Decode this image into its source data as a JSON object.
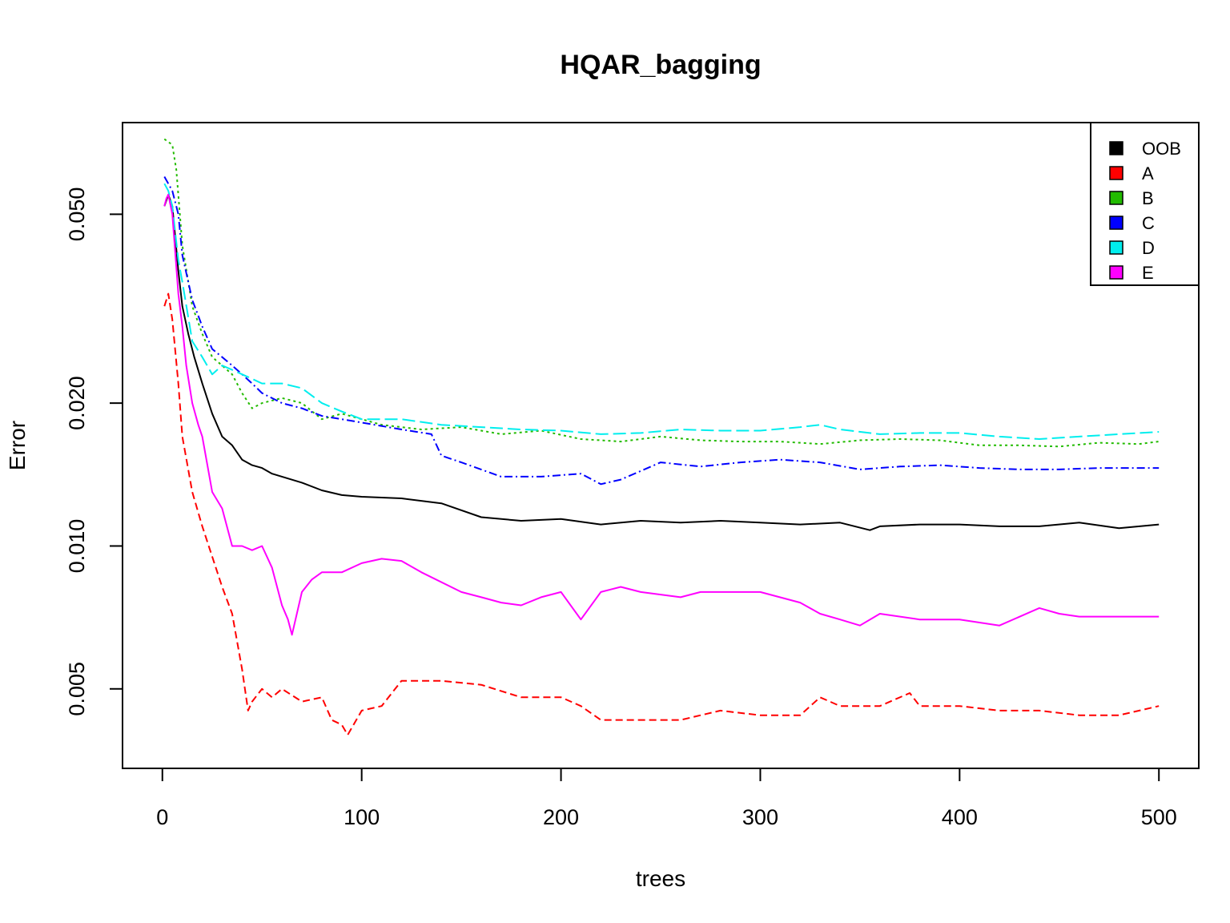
{
  "chart_data": {
    "type": "line",
    "title": "HQAR_bagging",
    "xlabel": "trees",
    "ylabel": "Error",
    "xlim": [
      -20,
      520
    ],
    "ylim": [
      0.0034,
      0.078
    ],
    "y_scale": "log",
    "x_ticks": [
      0,
      100,
      200,
      300,
      400,
      500
    ],
    "y_ticks": [
      0.005,
      0.01,
      0.02,
      0.05
    ],
    "y_tick_labels": [
      "0.005",
      "0.010",
      "0.020",
      "0.050"
    ],
    "grid": false,
    "legend_position": "top-right",
    "series": [
      {
        "name": "OOB",
        "color": "#000000",
        "dash": "solid",
        "x": [
          1,
          3,
          5,
          8,
          10,
          13,
          16,
          20,
          25,
          30,
          35,
          40,
          45,
          50,
          55,
          60,
          70,
          80,
          90,
          100,
          120,
          140,
          160,
          180,
          200,
          220,
          240,
          260,
          280,
          300,
          320,
          340,
          355,
          360,
          380,
          400,
          420,
          440,
          460,
          480,
          500
        ],
        "y": [
          0.052,
          0.055,
          0.052,
          0.038,
          0.032,
          0.028,
          0.025,
          0.022,
          0.019,
          0.017,
          0.0163,
          0.0152,
          0.0148,
          0.0146,
          0.0142,
          0.014,
          0.0136,
          0.0131,
          0.0128,
          0.0127,
          0.0126,
          0.0123,
          0.0115,
          0.0113,
          0.0114,
          0.0111,
          0.0113,
          0.0112,
          0.0113,
          0.0112,
          0.0111,
          0.0112,
          0.0108,
          0.011,
          0.0111,
          0.0111,
          0.011,
          0.011,
          0.0112,
          0.0109,
          0.0111
        ]
      },
      {
        "name": "A",
        "color": "#ff0000",
        "dash": "long",
        "x": [
          1,
          3,
          5,
          8,
          10,
          15,
          20,
          25,
          30,
          35,
          40,
          43,
          45,
          50,
          55,
          60,
          70,
          80,
          85,
          90,
          93,
          100,
          110,
          120,
          140,
          160,
          180,
          200,
          210,
          220,
          240,
          260,
          280,
          300,
          320,
          330,
          340,
          360,
          375,
          380,
          400,
          420,
          440,
          460,
          480,
          500
        ],
        "y": [
          0.032,
          0.034,
          0.03,
          0.022,
          0.017,
          0.013,
          0.011,
          0.0095,
          0.0082,
          0.0072,
          0.0055,
          0.0045,
          0.0047,
          0.005,
          0.0048,
          0.005,
          0.0047,
          0.0048,
          0.0043,
          0.0042,
          0.004,
          0.0045,
          0.0046,
          0.0052,
          0.0052,
          0.0051,
          0.0048,
          0.0048,
          0.0046,
          0.0043,
          0.0043,
          0.0043,
          0.0045,
          0.0044,
          0.0044,
          0.0048,
          0.0046,
          0.0046,
          0.0049,
          0.0046,
          0.0046,
          0.0045,
          0.0045,
          0.0044,
          0.0044,
          0.0046
        ]
      },
      {
        "name": "B",
        "color": "#22bb00",
        "dash": "dotted",
        "x": [
          1,
          3,
          5,
          7,
          10,
          15,
          20,
          25,
          30,
          35,
          40,
          45,
          50,
          60,
          70,
          80,
          90,
          100,
          110,
          130,
          150,
          170,
          190,
          210,
          230,
          250,
          270,
          290,
          310,
          330,
          350,
          370,
          390,
          410,
          430,
          450,
          470,
          490,
          500
        ],
        "y": [
          0.072,
          0.071,
          0.07,
          0.062,
          0.043,
          0.032,
          0.028,
          0.025,
          0.024,
          0.023,
          0.021,
          0.0195,
          0.02,
          0.0205,
          0.02,
          0.0185,
          0.019,
          0.0185,
          0.018,
          0.0176,
          0.0178,
          0.0172,
          0.0175,
          0.0168,
          0.0166,
          0.017,
          0.0167,
          0.0166,
          0.0166,
          0.0164,
          0.0167,
          0.0168,
          0.0167,
          0.0163,
          0.0163,
          0.0162,
          0.0165,
          0.0164,
          0.0166
        ]
      },
      {
        "name": "C",
        "color": "#0000ff",
        "dash": "dashdot",
        "x": [
          1,
          3,
          5,
          8,
          10,
          15,
          20,
          25,
          30,
          35,
          40,
          45,
          50,
          60,
          70,
          80,
          90,
          100,
          120,
          135,
          140,
          150,
          170,
          190,
          210,
          220,
          230,
          250,
          270,
          290,
          310,
          330,
          350,
          370,
          390,
          410,
          430,
          450,
          470,
          490,
          500
        ],
        "y": [
          0.06,
          0.058,
          0.056,
          0.05,
          0.041,
          0.033,
          0.029,
          0.026,
          0.025,
          0.024,
          0.023,
          0.022,
          0.021,
          0.02,
          0.0195,
          0.0188,
          0.0185,
          0.0182,
          0.0176,
          0.0172,
          0.0155,
          0.015,
          0.014,
          0.014,
          0.0142,
          0.0135,
          0.0138,
          0.015,
          0.0147,
          0.015,
          0.0152,
          0.015,
          0.0145,
          0.0147,
          0.0148,
          0.0146,
          0.0145,
          0.0145,
          0.0146,
          0.0146,
          0.0146
        ]
      },
      {
        "name": "D",
        "color": "#00eeee",
        "dash": "longdash",
        "x": [
          1,
          3,
          5,
          8,
          10,
          15,
          20,
          25,
          30,
          35,
          40,
          45,
          50,
          60,
          70,
          80,
          90,
          100,
          110,
          120,
          140,
          160,
          180,
          200,
          220,
          240,
          260,
          280,
          300,
          320,
          330,
          340,
          360,
          380,
          400,
          420,
          440,
          460,
          480,
          500
        ],
        "y": [
          0.058,
          0.056,
          0.052,
          0.04,
          0.036,
          0.027,
          0.025,
          0.023,
          0.024,
          0.0235,
          0.023,
          0.0225,
          0.022,
          0.022,
          0.0215,
          0.02,
          0.0192,
          0.0185,
          0.0185,
          0.0185,
          0.018,
          0.0178,
          0.0176,
          0.0175,
          0.0172,
          0.0173,
          0.0176,
          0.0175,
          0.0175,
          0.0178,
          0.018,
          0.0176,
          0.0172,
          0.0173,
          0.0173,
          0.017,
          0.0168,
          0.017,
          0.0172,
          0.0174
        ]
      },
      {
        "name": "E",
        "color": "#ff00ff",
        "dash": "solid",
        "x": [
          1,
          2,
          3,
          5,
          8,
          10,
          12,
          15,
          18,
          20,
          25,
          30,
          35,
          40,
          45,
          50,
          55,
          60,
          63,
          65,
          70,
          75,
          80,
          90,
          100,
          110,
          120,
          130,
          150,
          160,
          170,
          180,
          190,
          200,
          210,
          220,
          230,
          240,
          260,
          270,
          280,
          300,
          320,
          330,
          340,
          350,
          360,
          380,
          400,
          420,
          440,
          450,
          460,
          480,
          500
        ],
        "y": [
          0.052,
          0.054,
          0.055,
          0.05,
          0.034,
          0.029,
          0.024,
          0.02,
          0.018,
          0.017,
          0.013,
          0.012,
          0.01,
          0.01,
          0.0098,
          0.01,
          0.009,
          0.0075,
          0.007,
          0.0065,
          0.008,
          0.0085,
          0.0088,
          0.0088,
          0.0092,
          0.0094,
          0.0093,
          0.0088,
          0.008,
          0.0078,
          0.0076,
          0.0075,
          0.0078,
          0.008,
          0.007,
          0.008,
          0.0082,
          0.008,
          0.0078,
          0.008,
          0.008,
          0.008,
          0.0076,
          0.0072,
          0.007,
          0.0068,
          0.0072,
          0.007,
          0.007,
          0.0068,
          0.0074,
          0.0072,
          0.0071,
          0.0071,
          0.0071
        ]
      }
    ]
  }
}
